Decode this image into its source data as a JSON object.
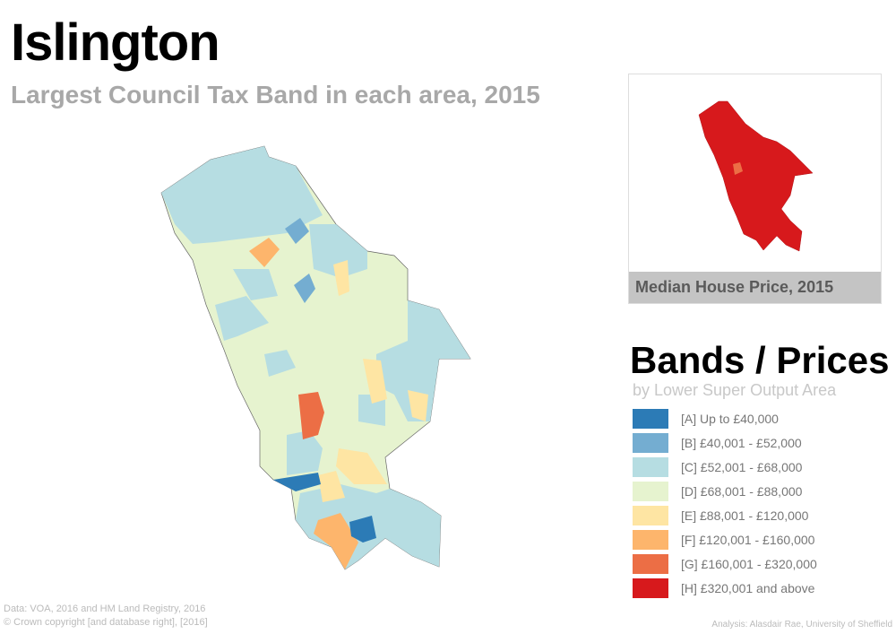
{
  "title": "Islington",
  "subtitle": "Largest Council Tax Band in each area, 2015",
  "inset": {
    "label": "Median House Price, 2015"
  },
  "legend": {
    "title": "Bands / Prices",
    "subtitle": "by Lower Super Output Area",
    "items": [
      {
        "label": "[A] Up to £40,000",
        "color": "#2c7bb6"
      },
      {
        "label": "[B] £40,001 - £52,000",
        "color": "#74add1"
      },
      {
        "label": "[C] £52,001 - £68,000",
        "color": "#b6dde2"
      },
      {
        "label": "[D] £68,001 - £88,000",
        "color": "#e6f3cf"
      },
      {
        "label": "[E] £88,001 - £120,000",
        "color": "#fee5a3"
      },
      {
        "label": "[F] £120,001 - £160,000",
        "color": "#fdb56c"
      },
      {
        "label": "[G] £160,001 - £320,000",
        "color": "#ec6e45"
      },
      {
        "label": "[H] £320,001 and above",
        "color": "#d7191c"
      }
    ]
  },
  "footer": {
    "data_source": "Data: VOA, 2016 and HM Land Registry, 2016",
    "copyright": "© Crown copyright [and database right], [2016]",
    "analysis": "Analysis: Alasdair Rae, University of Sheffield"
  }
}
